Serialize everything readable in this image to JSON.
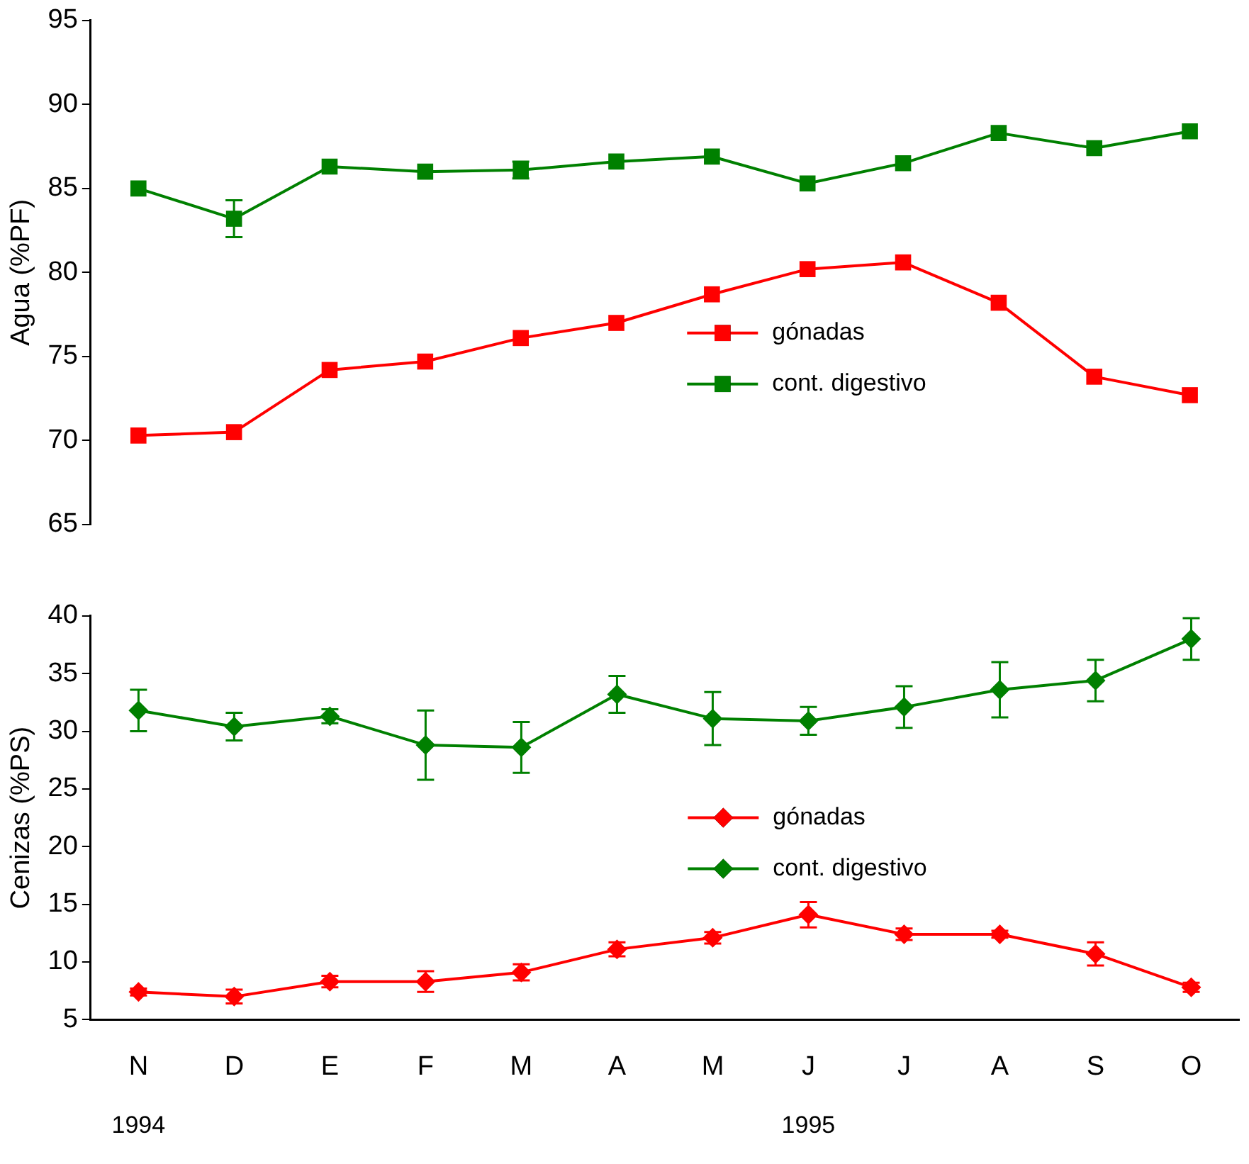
{
  "chart_data": [
    {
      "type": "line",
      "ylabel": "Agua (%PF)",
      "categories": [
        null,
        null,
        null,
        null,
        null,
        null,
        null,
        null,
        null,
        null,
        null,
        null
      ],
      "ylim": [
        65,
        95
      ],
      "yticks": [
        65,
        70,
        75,
        80,
        85,
        90,
        95
      ],
      "grid": false,
      "legend": "right",
      "marker": "square",
      "tick_labels": "y",
      "series": [
        {
          "name": "gónadas",
          "color": "#ff0000",
          "values": [
            70.3,
            70.5,
            74.2,
            74.7,
            76.1,
            77.0,
            78.7,
            80.2,
            80.6,
            78.2,
            73.8,
            72.7
          ]
        },
        {
          "name": "cont. digestivo",
          "color": "#008000",
          "values": [
            85.0,
            83.2,
            86.3,
            86.0,
            86.1,
            86.6,
            86.9,
            85.3,
            86.5,
            88.3,
            87.4,
            88.4
          ],
          "errors": [
            null,
            1.1,
            null,
            null,
            0.5,
            null,
            null,
            null,
            null,
            null,
            null,
            null
          ]
        }
      ]
    },
    {
      "type": "line",
      "ylabel": "Cenizas (%PS)",
      "categories": [
        "N",
        "D",
        "E",
        "F",
        "M",
        "A",
        "M",
        "J",
        "J",
        "A",
        "S",
        "O"
      ],
      "ylim": [
        5,
        40
      ],
      "yticks": [
        5,
        10,
        15,
        20,
        25,
        30,
        35,
        40
      ],
      "grid": false,
      "legend": "right",
      "marker": "diamond",
      "annotations": [
        "1994",
        "1995"
      ],
      "series": [
        {
          "name": "gónadas",
          "color": "#ff0000",
          "values": [
            7.4,
            7.0,
            8.3,
            8.3,
            9.1,
            11.1,
            12.1,
            14.1,
            12.4,
            12.4,
            10.7,
            7.8
          ],
          "errors": [
            0.3,
            0.6,
            0.5,
            0.9,
            0.7,
            0.6,
            0.5,
            1.1,
            0.5,
            0.3,
            1.0,
            0.4
          ]
        },
        {
          "name": "cont. digestivo",
          "color": "#008000",
          "values": [
            31.8,
            30.4,
            31.3,
            28.8,
            28.6,
            33.2,
            31.1,
            30.9,
            32.1,
            33.6,
            34.4,
            38.0
          ],
          "errors": [
            1.8,
            1.2,
            0.6,
            3.0,
            2.2,
            1.6,
            2.3,
            1.2,
            1.8,
            2.4,
            1.8,
            1.8
          ]
        }
      ]
    }
  ]
}
